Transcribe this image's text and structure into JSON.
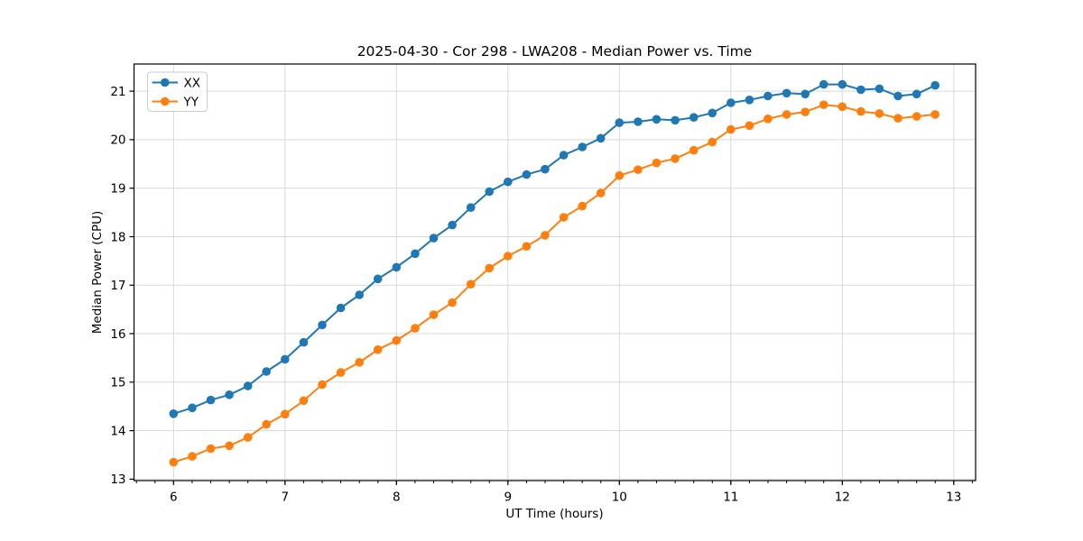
{
  "chart_data": {
    "type": "line",
    "title": "2025-04-30 - Cor 298 - LWA208 - Median Power vs. Time",
    "xlabel": "UT Time (hours)",
    "ylabel": "Median Power (CPU)",
    "xlim": [
      5.645,
      13.196
    ],
    "ylim": [
      12.97,
      21.56
    ],
    "xticks": [
      6,
      7,
      8,
      9,
      10,
      11,
      12,
      13
    ],
    "yticks": [
      13,
      14,
      15,
      16,
      17,
      18,
      19,
      20,
      21
    ],
    "x_minor_step": 0.16667,
    "grid": true,
    "grid_color": "#d9d9d9",
    "legend_position": "upper left",
    "x": [
      6.0,
      6.167,
      6.333,
      6.5,
      6.667,
      6.833,
      7.0,
      7.167,
      7.333,
      7.5,
      7.667,
      7.833,
      8.0,
      8.167,
      8.333,
      8.5,
      8.667,
      8.833,
      9.0,
      9.167,
      9.333,
      9.5,
      9.667,
      9.833,
      10.0,
      10.167,
      10.333,
      10.5,
      10.667,
      10.833,
      11.0,
      11.167,
      11.333,
      11.5,
      11.667,
      11.833,
      12.0,
      12.167,
      12.333,
      12.5,
      12.667,
      12.833
    ],
    "series": [
      {
        "name": "XX",
        "color": "#1f77b4",
        "values": [
          14.35,
          14.47,
          14.63,
          14.74,
          14.92,
          15.22,
          15.47,
          15.82,
          16.18,
          16.53,
          16.8,
          17.13,
          17.37,
          17.65,
          17.97,
          18.24,
          18.6,
          18.93,
          19.13,
          19.28,
          19.39,
          19.68,
          19.85,
          20.03,
          20.35,
          20.37,
          20.42,
          20.4,
          20.46,
          20.55,
          20.76,
          20.82,
          20.9,
          20.96,
          20.94,
          21.14,
          21.14,
          21.03,
          21.05,
          20.9,
          20.94,
          21.12
        ]
      },
      {
        "name": "YY",
        "color": "#ff7f0e",
        "values": [
          13.35,
          13.47,
          13.63,
          13.69,
          13.86,
          14.13,
          14.34,
          14.62,
          14.95,
          15.2,
          15.41,
          15.67,
          15.86,
          16.11,
          16.39,
          16.64,
          17.02,
          17.35,
          17.6,
          17.8,
          18.03,
          18.4,
          18.63,
          18.9,
          19.26,
          19.38,
          19.52,
          19.61,
          19.78,
          19.95,
          20.21,
          20.29,
          20.43,
          20.52,
          20.57,
          20.72,
          20.68,
          20.58,
          20.54,
          20.44,
          20.48,
          20.52
        ]
      }
    ]
  }
}
